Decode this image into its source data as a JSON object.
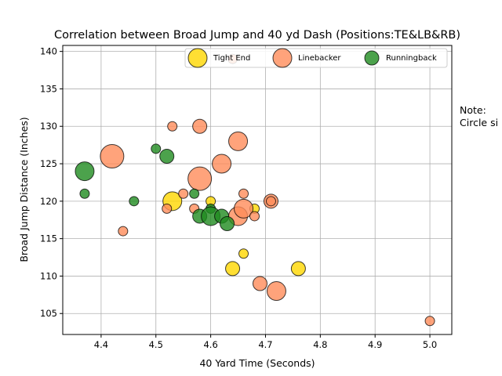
{
  "chart_data": {
    "type": "scatter",
    "title": "Correlation between Broad Jump and 40 yd Dash (Positions:TE&LB&RB)",
    "xlabel": "40 Yard Time (Seconds)",
    "ylabel": "Broad Jump Distance (Inches)",
    "xlim": [
      4.33,
      5.04
    ],
    "ylim": [
      102.2,
      140.8
    ],
    "xticks": [
      "4.4",
      "4.5",
      "4.6",
      "4.7",
      "4.8",
      "4.9",
      "5.0"
    ],
    "yticks": [
      "105",
      "110",
      "115",
      "120",
      "125",
      "130",
      "135",
      "140"
    ],
    "grid": true,
    "legend_position": "top-right",
    "note": [
      "Note:",
      "Circle si"
    ],
    "series": [
      {
        "name": "Tight End",
        "color": "#ffd700",
        "points": [
          {
            "x": 4.53,
            "y": 120,
            "size": 3
          },
          {
            "x": 4.6,
            "y": 120,
            "size": 1
          },
          {
            "x": 4.64,
            "y": 111,
            "size": 2
          },
          {
            "x": 4.66,
            "y": 113,
            "size": 1
          },
          {
            "x": 4.68,
            "y": 119,
            "size": 1
          },
          {
            "x": 4.76,
            "y": 111,
            "size": 2
          }
        ]
      },
      {
        "name": "Linebacker",
        "color": "#ff8c5a",
        "points": [
          {
            "x": 4.42,
            "y": 126,
            "size": 4
          },
          {
            "x": 4.44,
            "y": 116,
            "size": 1
          },
          {
            "x": 4.52,
            "y": 119,
            "size": 1
          },
          {
            "x": 4.53,
            "y": 130,
            "size": 1
          },
          {
            "x": 4.55,
            "y": 121,
            "size": 1
          },
          {
            "x": 4.57,
            "y": 119,
            "size": 1
          },
          {
            "x": 4.58,
            "y": 123,
            "size": 4
          },
          {
            "x": 4.58,
            "y": 130,
            "size": 2
          },
          {
            "x": 4.62,
            "y": 125,
            "size": 3
          },
          {
            "x": 4.64,
            "y": 139,
            "size": 1
          },
          {
            "x": 4.65,
            "y": 128,
            "size": 3
          },
          {
            "x": 4.65,
            "y": 118,
            "size": 3
          },
          {
            "x": 4.66,
            "y": 119,
            "size": 3
          },
          {
            "x": 4.66,
            "y": 121,
            "size": 1
          },
          {
            "x": 4.68,
            "y": 118,
            "size": 1
          },
          {
            "x": 4.69,
            "y": 109,
            "size": 2
          },
          {
            "x": 4.71,
            "y": 120,
            "size": 2
          },
          {
            "x": 4.71,
            "y": 120,
            "size": 1
          },
          {
            "x": 4.72,
            "y": 108,
            "size": 3
          },
          {
            "x": 5.0,
            "y": 104,
            "size": 1
          }
        ]
      },
      {
        "name": "Runningback",
        "color": "#1f8b1f",
        "points": [
          {
            "x": 4.37,
            "y": 124,
            "size": 3
          },
          {
            "x": 4.37,
            "y": 121,
            "size": 1
          },
          {
            "x": 4.46,
            "y": 120,
            "size": 1
          },
          {
            "x": 4.5,
            "y": 127,
            "size": 1
          },
          {
            "x": 4.52,
            "y": 126,
            "size": 2
          },
          {
            "x": 4.57,
            "y": 121,
            "size": 1
          },
          {
            "x": 4.58,
            "y": 118,
            "size": 2
          },
          {
            "x": 4.6,
            "y": 119,
            "size": 1
          },
          {
            "x": 4.6,
            "y": 118,
            "size": 3
          },
          {
            "x": 4.62,
            "y": 118,
            "size": 2
          },
          {
            "x": 4.63,
            "y": 117,
            "size": 2
          }
        ]
      }
    ]
  }
}
